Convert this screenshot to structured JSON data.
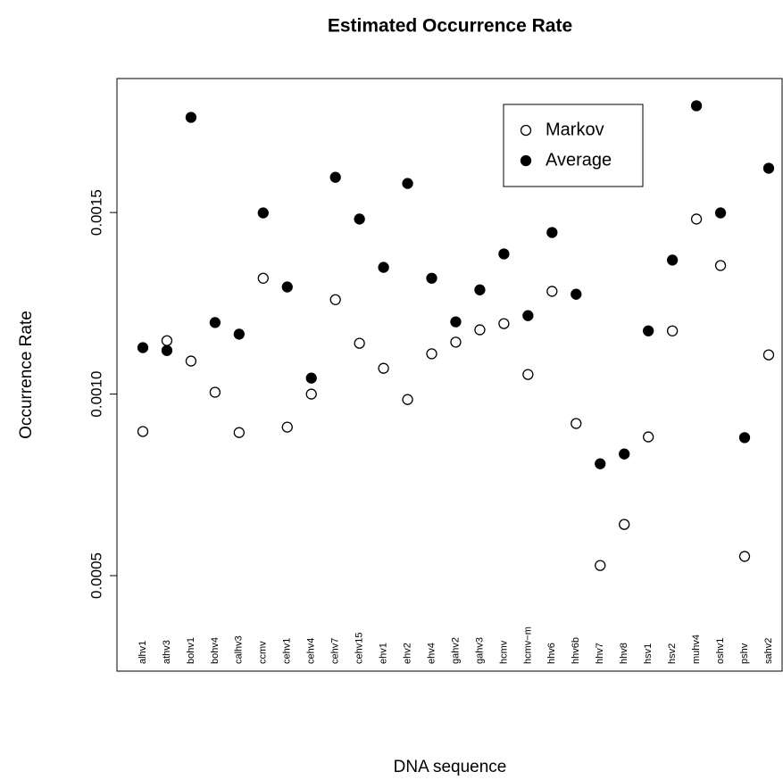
{
  "chart_data": {
    "type": "scatter",
    "title": "Estimated Occurrence Rate",
    "x_label": "DNA sequence",
    "y_label": "Occurrence Rate",
    "categories": [
      "alhv1",
      "athv3",
      "bohv1",
      "bohv4",
      "calhv3",
      "ccmv",
      "cehv1",
      "cehv4",
      "cehv7",
      "cehv15",
      "ehv1",
      "ehv2",
      "ehv4",
      "gahv2",
      "gahv3",
      "hcmv",
      "hcmv−m",
      "hhv6",
      "hhv6b",
      "hhv7",
      "hhv8",
      "hsv1",
      "hsv2",
      "muhv4",
      "oshv1",
      "pshv",
      "sahv2"
    ],
    "series": [
      {
        "name": "Markov",
        "color": "#000000",
        "marker": "open",
        "values": [
          0.000897,
          0.001147,
          0.001091,
          0.001005,
          0.000894,
          0.001319,
          0.000909,
          0.001,
          0.00126,
          0.00114,
          0.001071,
          0.000985,
          0.001111,
          0.001143,
          0.001177,
          0.001194,
          0.001054,
          0.001283,
          0.000919,
          0.000528,
          0.000641,
          0.000882,
          0.001174,
          0.001482,
          0.001354,
          0.000553,
          0.001108
        ]
      },
      {
        "name": "Average",
        "color": "#000000",
        "marker": "filled",
        "values": [
          0.001128,
          0.00112,
          0.001762,
          0.001197,
          0.001165,
          0.001499,
          0.001295,
          0.001044,
          0.001597,
          0.001482,
          0.001349,
          0.00158,
          0.001319,
          0.001199,
          0.001287,
          0.001386,
          0.001216,
          0.001445,
          0.001275,
          0.000808,
          0.000835,
          0.001174,
          0.001369,
          0.001794,
          0.001499,
          0.00088,
          0.001622
        ]
      }
    ],
    "ylim": [
      0.000237,
      0.001869
    ],
    "yticks": [
      0.0005,
      {
        "value": 0.001,
        "label": "0.0010"
      },
      0.0015
    ],
    "legend": "top-right",
    "grid": false
  }
}
